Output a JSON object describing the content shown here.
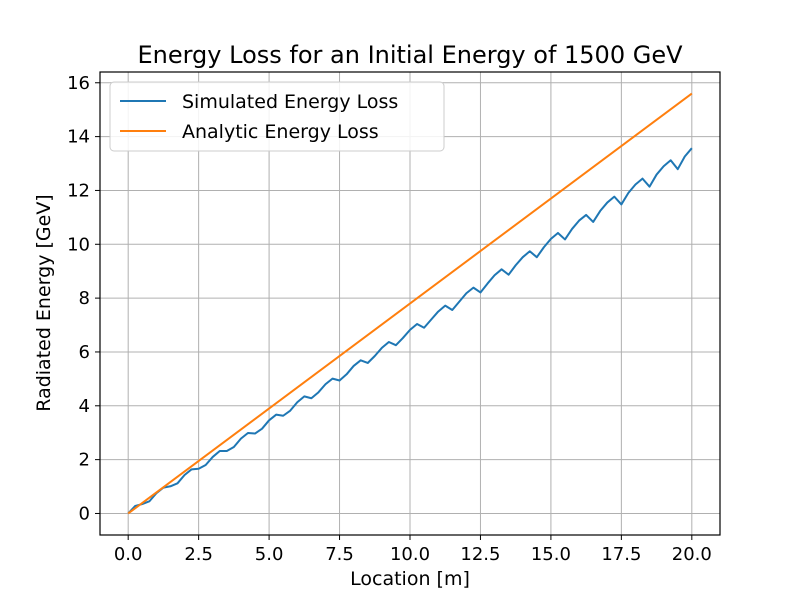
{
  "chart_data": {
    "type": "line",
    "title": "Energy Loss for an Initial Energy of 1500 GeV",
    "xlabel": "Location [m]",
    "ylabel": "Radiated Energy [GeV]",
    "xlim": [
      -1.0,
      21.0
    ],
    "ylim": [
      -0.8,
      16.4
    ],
    "xticks": [
      0.0,
      2.5,
      5.0,
      7.5,
      10.0,
      12.5,
      15.0,
      17.5,
      20.0
    ],
    "xtick_labels": [
      "0.0",
      "2.5",
      "5.0",
      "7.5",
      "10.0",
      "12.5",
      "15.0",
      "17.5",
      "20.0"
    ],
    "yticks": [
      0,
      2,
      4,
      6,
      8,
      10,
      12,
      14,
      16
    ],
    "ytick_labels": [
      "0",
      "2",
      "4",
      "6",
      "8",
      "10",
      "12",
      "14",
      "16"
    ],
    "grid": true,
    "legend_position": "top-left",
    "series": [
      {
        "name": "Simulated Energy Loss",
        "color": "#1f77b4",
        "x": [
          0.0,
          0.25,
          0.5,
          0.75,
          1.0,
          1.25,
          1.5,
          1.75,
          2.0,
          2.25,
          2.5,
          2.75,
          3.0,
          3.25,
          3.5,
          3.75,
          4.0,
          4.25,
          4.5,
          4.75,
          5.0,
          5.25,
          5.5,
          5.75,
          6.0,
          6.25,
          6.5,
          6.75,
          7.0,
          7.25,
          7.5,
          7.75,
          8.0,
          8.25,
          8.5,
          8.75,
          9.0,
          9.25,
          9.5,
          9.75,
          10.0,
          10.25,
          10.5,
          10.75,
          11.0,
          11.25,
          11.5,
          11.75,
          12.0,
          12.25,
          12.5,
          12.75,
          13.0,
          13.25,
          13.5,
          13.75,
          14.0,
          14.25,
          14.5,
          14.75,
          15.0,
          15.25,
          15.5,
          15.75,
          16.0,
          16.25,
          16.5,
          16.75,
          17.0,
          17.25,
          17.5,
          17.75,
          18.0,
          18.25,
          18.5,
          18.75,
          19.0,
          19.25,
          19.5,
          19.75,
          20.0
        ],
        "y": [
          0.0,
          0.28,
          0.35,
          0.45,
          0.75,
          0.96,
          1.01,
          1.12,
          1.43,
          1.64,
          1.66,
          1.8,
          2.1,
          2.32,
          2.32,
          2.47,
          2.78,
          2.99,
          2.97,
          3.15,
          3.46,
          3.67,
          3.63,
          3.82,
          4.13,
          4.35,
          4.28,
          4.5,
          4.8,
          5.01,
          4.94,
          5.17,
          5.48,
          5.69,
          5.59,
          5.85,
          6.15,
          6.37,
          6.25,
          6.52,
          6.82,
          7.04,
          6.9,
          7.2,
          7.5,
          7.72,
          7.56,
          7.87,
          8.18,
          8.39,
          8.21,
          8.54,
          8.85,
          9.07,
          8.87,
          9.22,
          9.52,
          9.74,
          9.52,
          9.89,
          10.2,
          10.42,
          10.18,
          10.57,
          10.88,
          11.09,
          10.83,
          11.24,
          11.55,
          11.77,
          11.48,
          11.91,
          12.22,
          12.44,
          12.14,
          12.59,
          12.9,
          13.12,
          12.79,
          13.26,
          13.57
        ]
      },
      {
        "name": "Analytic Energy Loss",
        "color": "#ff7f0e",
        "x": [
          0.0,
          20.0
        ],
        "y": [
          0.0,
          15.6
        ]
      }
    ]
  }
}
